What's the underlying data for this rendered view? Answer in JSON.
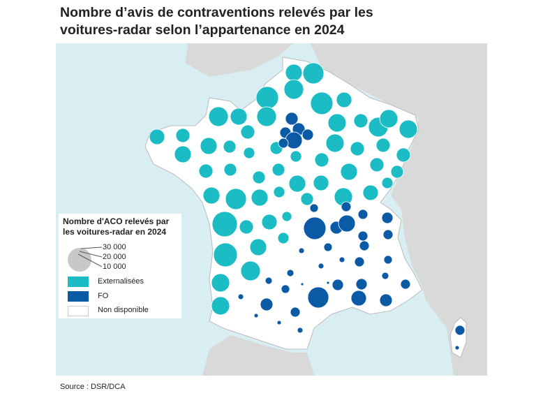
{
  "title_line1": "Nombre d’avis de contraventions relevés par les",
  "title_line2": "voitures-radar selon l’appartenance en 2024",
  "legend": {
    "title_line1": "Nombre d'ACO relevés par",
    "title_line2": "les voitures-radar en 2024",
    "size_values": [
      "30 000",
      "20 000",
      "10 000"
    ],
    "categories": [
      {
        "label": "Externalisées",
        "color": "#1cbcc4"
      },
      {
        "label": "FO",
        "color": "#0b5aa6"
      },
      {
        "label": "Non disponible",
        "color": "#ffffff"
      }
    ]
  },
  "colors": {
    "sea": "#d8eef3",
    "neighbors": "#d9d9d9",
    "france": "#ffffff",
    "borders": "#c8c8c8"
  },
  "source": "Source : DSR/DCA"
}
